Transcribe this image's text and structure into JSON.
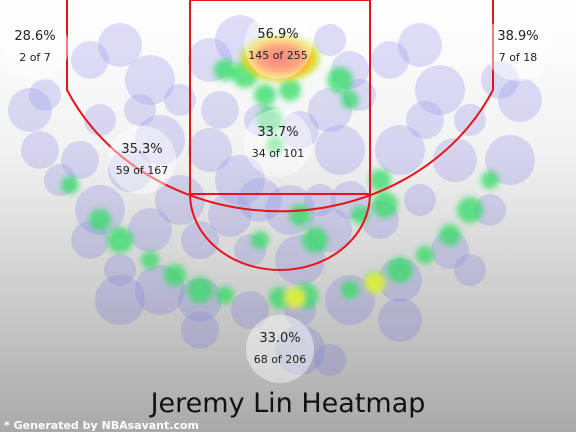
{
  "chart_data": {
    "type": "heatmap",
    "title": "Jeremy Lin Heatmap",
    "zones": [
      {
        "name": "left-corner-three",
        "pct": "28.6%",
        "made_of": "2 of 7",
        "made": 2,
        "attempts": 7
      },
      {
        "name": "right-corner-three",
        "pct": "38.9%",
        "made_of": "7 of 18",
        "made": 7,
        "attempts": 18
      },
      {
        "name": "restricted-area",
        "pct": "56.9%",
        "made_of": "145 of 255",
        "made": 145,
        "attempts": 255
      },
      {
        "name": "paint-non-ra",
        "pct": "33.7%",
        "made_of": "34 of 101",
        "made": 34,
        "attempts": 101
      },
      {
        "name": "mid-range",
        "pct": "35.3%",
        "made_of": "59 of 167",
        "made": 59,
        "attempts": 167
      },
      {
        "name": "above-break-three",
        "pct": "33.0%",
        "made_of": "68 of 206",
        "made": 68,
        "attempts": 206
      }
    ],
    "footer": "* Generated by NBAsavant.com"
  },
  "colors": {
    "court_line": "#e8141b",
    "background_top": "#ffffff",
    "background_bottom": "#a9a9a9",
    "heat_low": "#5a5ae6",
    "heat_mid": "#32dc64",
    "heat_high": "#ff2a1a",
    "footer_text": "#ffffff"
  }
}
